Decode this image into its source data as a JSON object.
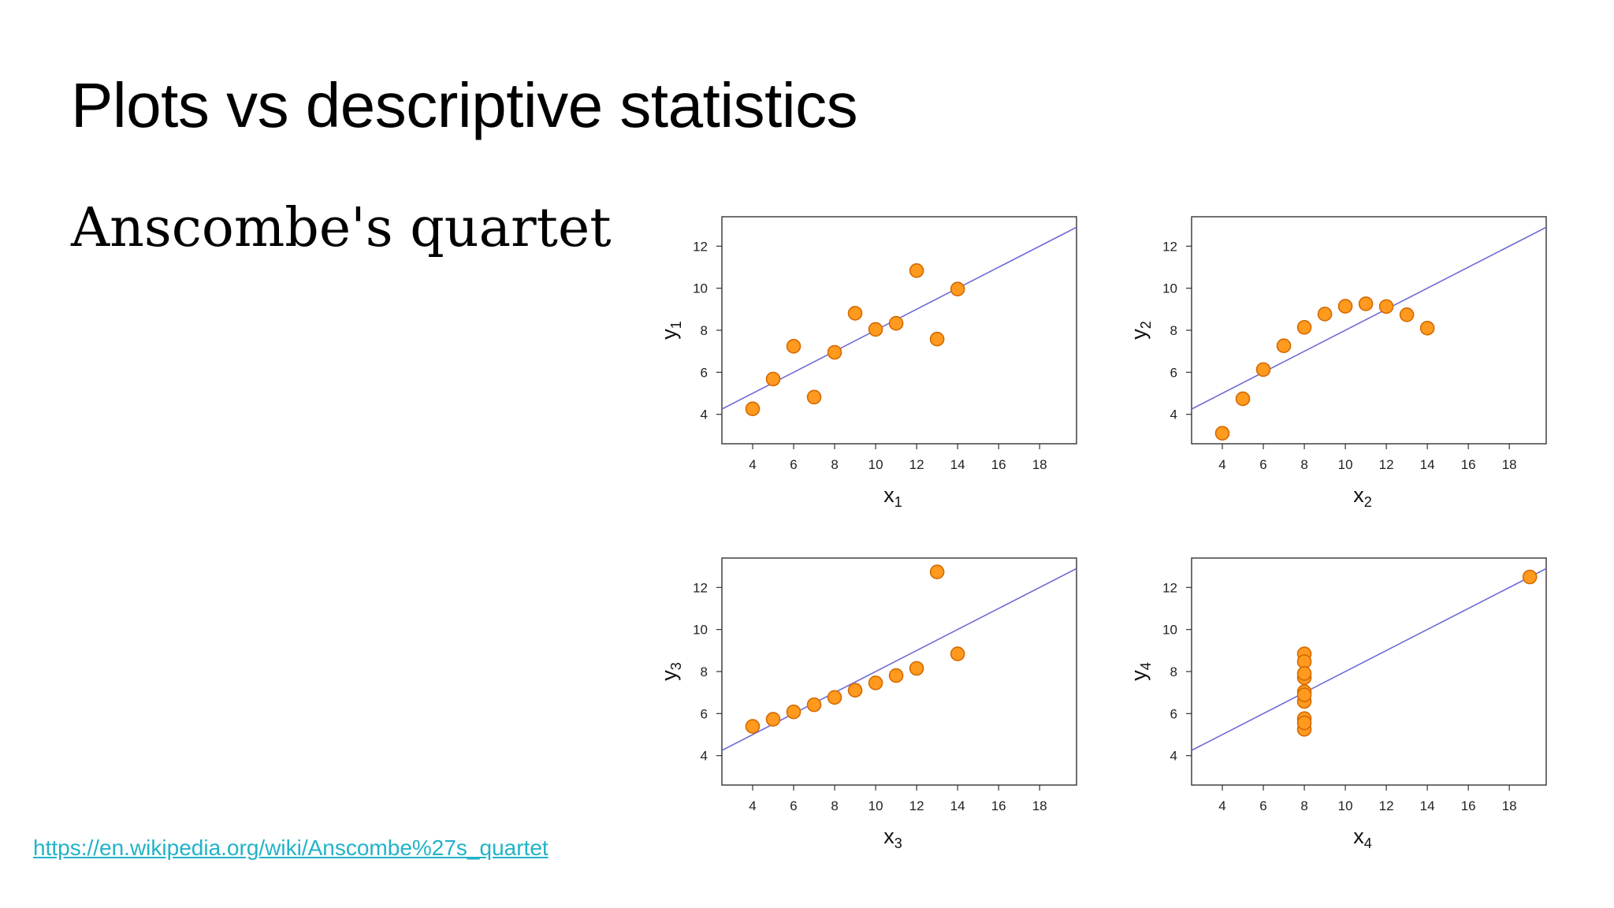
{
  "slide": {
    "title": "Plots vs descriptive statistics",
    "subtitle": "Anscombe's quartet",
    "link": "https://en.wikipedia.org/wiki/Anscombe%27s_quartet"
  },
  "colors": {
    "point_fill": "#ff9a1f",
    "point_stroke": "#d46a00",
    "fit_line": "#6b6bd6",
    "frame": "#333333",
    "link": "#22b3c7"
  },
  "chart_data": [
    {
      "type": "scatter",
      "xlabel": "x",
      "xlabel_sub": "1",
      "ylabel": "y",
      "ylabel_sub": "1",
      "xlim": [
        2.5,
        19.8
      ],
      "ylim": [
        2.6,
        13.4
      ],
      "xticks": [
        4,
        6,
        8,
        10,
        12,
        14,
        16,
        18
      ],
      "yticks": [
        4,
        6,
        8,
        10,
        12
      ],
      "fit": {
        "intercept": 3.0,
        "slope": 0.5
      },
      "x": [
        10,
        8,
        13,
        9,
        11,
        14,
        6,
        4,
        12,
        7,
        5
      ],
      "y": [
        8.04,
        6.95,
        7.58,
        8.81,
        8.33,
        9.96,
        7.24,
        4.26,
        10.84,
        4.82,
        5.68
      ]
    },
    {
      "type": "scatter",
      "xlabel": "x",
      "xlabel_sub": "2",
      "ylabel": "y",
      "ylabel_sub": "2",
      "xlim": [
        2.5,
        19.8
      ],
      "ylim": [
        2.6,
        13.4
      ],
      "xticks": [
        4,
        6,
        8,
        10,
        12,
        14,
        16,
        18
      ],
      "yticks": [
        4,
        6,
        8,
        10,
        12
      ],
      "fit": {
        "intercept": 3.0,
        "slope": 0.5
      },
      "x": [
        10,
        8,
        13,
        9,
        11,
        14,
        6,
        4,
        12,
        7,
        5
      ],
      "y": [
        9.14,
        8.14,
        8.74,
        8.77,
        9.26,
        8.1,
        6.13,
        3.1,
        9.13,
        7.26,
        4.74
      ]
    },
    {
      "type": "scatter",
      "xlabel": "x",
      "xlabel_sub": "3",
      "ylabel": "y",
      "ylabel_sub": "3",
      "xlim": [
        2.5,
        19.8
      ],
      "ylim": [
        2.6,
        13.4
      ],
      "xticks": [
        4,
        6,
        8,
        10,
        12,
        14,
        16,
        18
      ],
      "yticks": [
        4,
        6,
        8,
        10,
        12
      ],
      "fit": {
        "intercept": 3.0,
        "slope": 0.5
      },
      "x": [
        10,
        8,
        13,
        9,
        11,
        14,
        6,
        4,
        12,
        7,
        5
      ],
      "y": [
        7.46,
        6.77,
        12.74,
        7.11,
        7.81,
        8.84,
        6.08,
        5.39,
        8.15,
        6.42,
        5.73
      ]
    },
    {
      "type": "scatter",
      "xlabel": "x",
      "xlabel_sub": "4",
      "ylabel": "y",
      "ylabel_sub": "4",
      "xlim": [
        2.5,
        19.8
      ],
      "ylim": [
        2.6,
        13.4
      ],
      "xticks": [
        4,
        6,
        8,
        10,
        12,
        14,
        16,
        18
      ],
      "yticks": [
        4,
        6,
        8,
        10,
        12
      ],
      "fit": {
        "intercept": 3.0,
        "slope": 0.5
      },
      "x": [
        8,
        8,
        8,
        8,
        8,
        8,
        8,
        19,
        8,
        8,
        8
      ],
      "y": [
        6.58,
        5.76,
        7.71,
        8.84,
        8.47,
        7.04,
        5.25,
        12.5,
        5.56,
        7.91,
        6.89
      ]
    }
  ]
}
